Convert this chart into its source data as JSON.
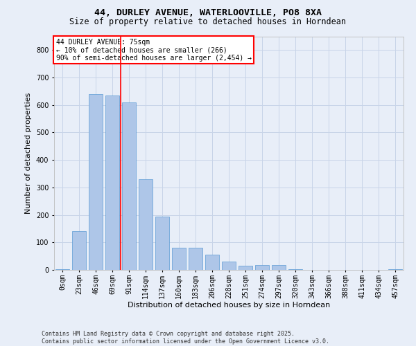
{
  "title": "44, DURLEY AVENUE, WATERLOOVILLE, PO8 8XA",
  "subtitle": "Size of property relative to detached houses in Horndean",
  "xlabel": "Distribution of detached houses by size in Horndean",
  "ylabel": "Number of detached properties",
  "categories": [
    "0sqm",
    "23sqm",
    "46sqm",
    "69sqm",
    "91sqm",
    "114sqm",
    "137sqm",
    "160sqm",
    "183sqm",
    "206sqm",
    "228sqm",
    "251sqm",
    "274sqm",
    "297sqm",
    "320sqm",
    "343sqm",
    "366sqm",
    "388sqm",
    "411sqm",
    "434sqm",
    "457sqm"
  ],
  "bar_values": [
    3,
    140,
    640,
    635,
    610,
    330,
    195,
    80,
    80,
    55,
    30,
    15,
    18,
    18,
    3,
    0,
    0,
    0,
    0,
    0,
    3
  ],
  "bar_color": "#aec6e8",
  "bar_edge_color": "#5b9bd5",
  "grid_color": "#c8d4e8",
  "background_color": "#e8eef8",
  "vline_x": 3.5,
  "vline_color": "red",
  "annotation_text": "44 DURLEY AVENUE: 75sqm\n← 10% of detached houses are smaller (266)\n90% of semi-detached houses are larger (2,454) →",
  "annotation_box_color": "white",
  "annotation_box_edge": "red",
  "ylim": [
    0,
    850
  ],
  "yticks": [
    0,
    100,
    200,
    300,
    400,
    500,
    600,
    700,
    800
  ],
  "footer_text": "Contains HM Land Registry data © Crown copyright and database right 2025.\nContains public sector information licensed under the Open Government Licence v3.0.",
  "title_fontsize": 9.5,
  "subtitle_fontsize": 8.5,
  "label_fontsize": 8,
  "tick_fontsize": 7,
  "ann_fontsize": 7,
  "footer_fontsize": 6
}
